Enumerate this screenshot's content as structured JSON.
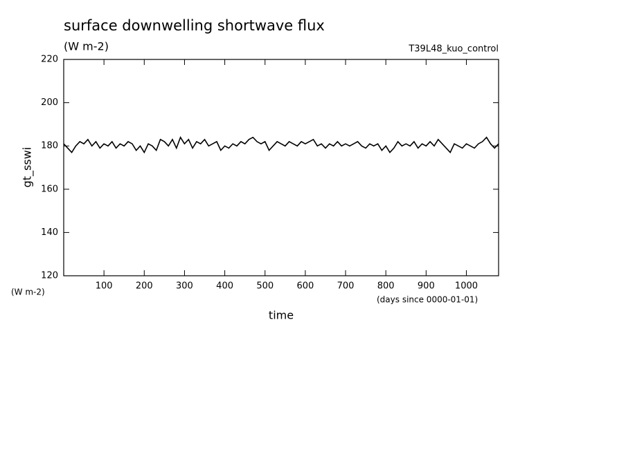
{
  "chart_data": {
    "type": "line",
    "title": "surface downwelling shortwave flux",
    "subtitle": "(W m-2)",
    "annotation": "T39L48_kuo_control",
    "ylabel": "gt_sswi",
    "yunit": "(W m-2)",
    "xlabel": "time",
    "xunit": "(days since 0000-01-01)",
    "xlim": [
      0,
      1080
    ],
    "ylim": [
      120,
      220
    ],
    "xticks": [
      100,
      200,
      300,
      400,
      500,
      600,
      700,
      800,
      900,
      1000
    ],
    "yticks": [
      120,
      140,
      160,
      180,
      200,
      220
    ],
    "x": [
      0,
      10,
      20,
      30,
      40,
      50,
      60,
      70,
      80,
      90,
      100,
      110,
      120,
      130,
      140,
      150,
      160,
      170,
      180,
      190,
      200,
      210,
      220,
      230,
      240,
      250,
      260,
      270,
      280,
      290,
      300,
      310,
      320,
      330,
      340,
      350,
      360,
      370,
      380,
      390,
      400,
      410,
      420,
      430,
      440,
      450,
      460,
      470,
      480,
      490,
      500,
      510,
      520,
      530,
      540,
      550,
      560,
      570,
      580,
      590,
      600,
      610,
      620,
      630,
      640,
      650,
      660,
      670,
      680,
      690,
      700,
      710,
      720,
      730,
      740,
      750,
      760,
      770,
      780,
      790,
      800,
      810,
      820,
      830,
      840,
      850,
      860,
      870,
      880,
      890,
      900,
      910,
      920,
      930,
      940,
      950,
      960,
      970,
      980,
      990,
      1000,
      1010,
      1020,
      1030,
      1040,
      1050,
      1060,
      1070,
      1080
    ],
    "series": [
      {
        "name": "gt_sswi",
        "color": "#000000",
        "values": [
          181,
          179,
          177,
          180,
          182,
          181,
          183,
          180,
          182,
          179,
          181,
          180,
          182,
          179,
          181,
          180,
          182,
          181,
          178,
          180,
          177,
          181,
          180,
          178,
          183,
          182,
          180,
          183,
          179,
          184,
          181,
          183,
          179,
          182,
          181,
          183,
          180,
          181,
          182,
          178,
          180,
          179,
          181,
          180,
          182,
          181,
          183,
          184,
          182,
          181,
          182,
          178,
          180,
          182,
          181,
          180,
          182,
          181,
          180,
          182,
          181,
          182,
          183,
          180,
          181,
          179,
          181,
          180,
          182,
          180,
          181,
          180,
          181,
          182,
          180,
          179,
          181,
          180,
          181,
          178,
          180,
          177,
          179,
          182,
          180,
          181,
          180,
          182,
          179,
          181,
          180,
          182,
          180,
          183,
          181,
          179,
          177,
          181,
          180,
          179,
          181,
          180,
          179,
          181,
          182,
          184,
          181,
          179,
          181
        ]
      }
    ]
  }
}
